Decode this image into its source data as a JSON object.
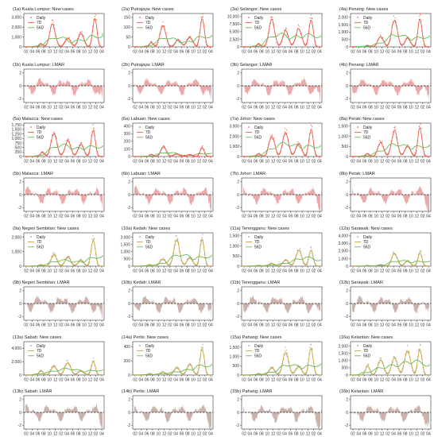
{
  "figure": {
    "x_ticks": [
      "02",
      "04",
      "06",
      "08",
      "10",
      "12",
      "02",
      "04",
      "06",
      "08",
      "10",
      "12",
      "02",
      "04"
    ],
    "colors": {
      "daily": "#e8604c",
      "ma7": "#c9a43c",
      "ma56": "#66bb55",
      "lmar_fill_pink": "#e89a9a",
      "lmar_fill_brown": "#c2a49c",
      "zero_line": "#222222"
    }
  },
  "chart_data": [
    {
      "type": "line",
      "title": "(1a) Kuala Lumpur: New cases",
      "y_ticks": [
        0,
        1000,
        2000,
        3000
      ],
      "y_tick_labels": [
        "0",
        "1,000",
        "2,000",
        "3,000"
      ],
      "ylim": [
        0,
        3400
      ],
      "legend": [
        "Daily",
        "7D",
        "56D"
      ],
      "palette": "orange",
      "peaks": [
        [
          0.2,
          0.1
        ],
        [
          0.35,
          0.75
        ],
        [
          0.55,
          0.3
        ],
        [
          0.72,
          0.45
        ],
        [
          0.9,
          3200
        ]
      ]
    },
    {
      "type": "line",
      "title": "(2a) Putrajaya: New cases",
      "y_ticks": [
        0,
        50,
        100,
        150
      ],
      "y_tick_labels": [
        "0",
        "50",
        "100",
        "150"
      ],
      "ylim": [
        0,
        170
      ],
      "legend": [
        "Daily",
        "7D",
        "56D"
      ],
      "palette": "orange",
      "peaks": [
        [
          0.22,
          0.15
        ],
        [
          0.37,
          0.75
        ],
        [
          0.57,
          0.25
        ],
        [
          0.72,
          0.35
        ],
        [
          0.88,
          155
        ]
      ]
    },
    {
      "type": "line",
      "title": "(3a) Selangor: New cases",
      "y_ticks": [
        0,
        2500,
        5000,
        7500,
        10000
      ],
      "y_tick_labels": [
        "0",
        "2,500",
        "5,000",
        "7,500",
        "10,000"
      ],
      "ylim": [
        0,
        11000
      ],
      "legend": [
        "Daily",
        "7D",
        "56D"
      ],
      "palette": "orange",
      "peaks": [
        [
          0.2,
          0.1
        ],
        [
          0.37,
          0.92
        ],
        [
          0.55,
          0.55
        ],
        [
          0.72,
          0.65
        ],
        [
          0.88,
          10000
        ]
      ]
    },
    {
      "type": "line",
      "title": "(4a) Penang: New cases",
      "y_ticks": [
        0,
        500,
        1000,
        1500,
        2000
      ],
      "y_tick_labels": [
        "0",
        "500",
        "1,000",
        "1,500",
        "2,000"
      ],
      "ylim": [
        0,
        2250
      ],
      "legend": [
        "Daily",
        "7D",
        "56D"
      ],
      "palette": "orange",
      "peaks": [
        [
          0.2,
          0.05
        ],
        [
          0.37,
          0.35
        ],
        [
          0.55,
          0.95
        ],
        [
          0.72,
          0.3
        ],
        [
          0.88,
          2000
        ]
      ]
    },
    {
      "type": "area",
      "title": "(1b) Kuala Lumpur: LMAR",
      "y_ticks": [
        -2,
        0,
        2
      ],
      "ylim": [
        -2.6,
        2.6
      ],
      "palette": "pink"
    },
    {
      "type": "area",
      "title": "(2b) Putrajaya: LMAR",
      "y_ticks": [
        -2,
        0,
        2
      ],
      "ylim": [
        -2.6,
        2.6
      ],
      "palette": "pink"
    },
    {
      "type": "area",
      "title": "(3b) Selangor: LMAR",
      "y_ticks": [
        -2,
        0,
        2
      ],
      "ylim": [
        -2.6,
        2.6
      ],
      "palette": "pink"
    },
    {
      "type": "area",
      "title": "(4b) Penang: LMAR",
      "y_ticks": [
        -2,
        0,
        2
      ],
      "ylim": [
        -2.6,
        2.6
      ],
      "palette": "pink"
    },
    {
      "type": "line",
      "title": "(5a) Malacca: New cases",
      "y_ticks": [
        0,
        250,
        500,
        750,
        1000,
        1250,
        1500,
        1750
      ],
      "y_tick_labels": [
        "0",
        "250",
        "500",
        "750",
        "1,000",
        "1,250",
        "1,500",
        "1,750"
      ],
      "ylim": [
        0,
        1850
      ],
      "legend": [
        "Daily",
        "7D",
        "56D"
      ],
      "palette": "orange",
      "peaks": [
        [
          0.22,
          0.15
        ],
        [
          0.37,
          0.8
        ],
        [
          0.55,
          0.55
        ],
        [
          0.72,
          0.4
        ],
        [
          0.88,
          1700
        ]
      ]
    },
    {
      "type": "line",
      "title": "(6a) Labuan: New cases",
      "y_ticks": [
        0,
        100,
        200,
        300,
        400
      ],
      "y_tick_labels": [
        "0",
        "100",
        "200",
        "300",
        "400"
      ],
      "ylim": [
        0,
        440
      ],
      "legend": [
        "Daily",
        "7D",
        "56D"
      ],
      "palette": "orange",
      "peaks": [
        [
          0.22,
          0.2
        ],
        [
          0.38,
          0.95
        ],
        [
          0.55,
          0.25
        ],
        [
          0.72,
          0.2
        ],
        [
          0.88,
          130
        ]
      ]
    },
    {
      "type": "line",
      "title": "(7a) Johor: New cases",
      "y_ticks": [
        0,
        1000,
        2000,
        3000
      ],
      "y_tick_labels": [
        "0",
        "1,000",
        "2,000",
        "3,000"
      ],
      "ylim": [
        0,
        3300
      ],
      "legend": [
        "Daily",
        "7D",
        "56D"
      ],
      "palette": "orange",
      "peaks": [
        [
          0.2,
          0.1
        ],
        [
          0.37,
          0.7
        ],
        [
          0.55,
          0.85
        ],
        [
          0.72,
          0.45
        ],
        [
          0.88,
          3000
        ]
      ]
    },
    {
      "type": "line",
      "title": "(8a) Perak: New cases",
      "y_ticks": [
        0,
        500,
        1000,
        1500
      ],
      "y_tick_labels": [
        "0",
        "500",
        "1,000",
        "1,500"
      ],
      "ylim": [
        0,
        1650
      ],
      "legend": [
        "Daily",
        "7D",
        "56D"
      ],
      "palette": "orange",
      "peaks": [
        [
          0.2,
          0.1
        ],
        [
          0.37,
          0.5
        ],
        [
          0.55,
          0.9
        ],
        [
          0.72,
          0.35
        ],
        [
          0.88,
          1500
        ]
      ]
    },
    {
      "type": "area",
      "title": "(5b) Malacca: LMAR",
      "y_ticks": [
        -2,
        0,
        2
      ],
      "ylim": [
        -2.6,
        2.6
      ],
      "palette": "pink"
    },
    {
      "type": "area",
      "title": "(6b) Labuan: LMAR",
      "y_ticks": [
        -2,
        0,
        2
      ],
      "ylim": [
        -2.6,
        2.6
      ],
      "palette": "pink"
    },
    {
      "type": "area",
      "title": "(7b) Johor: LMAR",
      "y_ticks": [
        -2,
        0,
        2
      ],
      "ylim": [
        -2.6,
        2.6
      ],
      "palette": "pink"
    },
    {
      "type": "area",
      "title": "(8b) Perak: LMAR",
      "y_ticks": [
        -2,
        0,
        2
      ],
      "ylim": [
        -2.6,
        2.6
      ],
      "palette": "pink"
    },
    {
      "type": "line",
      "title": "(9a) Negeri Sembilan: New cases",
      "y_ticks": [
        0,
        1000,
        2000
      ],
      "y_tick_labels": [
        "0",
        "1,000",
        "2,000"
      ],
      "ylim": [
        0,
        2300
      ],
      "legend": [
        "Daily",
        "7D",
        "56D"
      ],
      "palette": "brown",
      "peaks": [
        [
          0.2,
          0.05
        ],
        [
          0.37,
          0.4
        ],
        [
          0.55,
          0.3
        ],
        [
          0.72,
          0.2
        ],
        [
          0.88,
          2100
        ]
      ]
    },
    {
      "type": "line",
      "title": "(10a) Kedah: New cases",
      "y_ticks": [
        0,
        500,
        1000,
        1500,
        2000
      ],
      "y_tick_labels": [
        "0",
        "500",
        "1,000",
        "1,500",
        "2,000"
      ],
      "ylim": [
        0,
        2300
      ],
      "legend": [
        "Daily",
        "7D",
        "56D"
      ],
      "palette": "brown",
      "peaks": [
        [
          0.2,
          0.05
        ],
        [
          0.37,
          0.25
        ],
        [
          0.55,
          0.9
        ],
        [
          0.72,
          0.3
        ],
        [
          0.88,
          2100
        ]
      ]
    },
    {
      "type": "line",
      "title": "(11a) Terengganu: New cases",
      "y_ticks": [
        0,
        500,
        1000,
        1500
      ],
      "y_tick_labels": [
        "0",
        "500",
        "1,000",
        "1,500"
      ],
      "ylim": [
        0,
        1650
      ],
      "legend": [
        "Daily",
        "7D",
        "56D"
      ],
      "palette": "brown",
      "peaks": [
        [
          0.2,
          0.05
        ],
        [
          0.37,
          0.15
        ],
        [
          0.55,
          0.35
        ],
        [
          0.72,
          0.95
        ],
        [
          0.88,
          900
        ]
      ]
    },
    {
      "type": "line",
      "title": "(12a) Sarawak: New cases",
      "y_ticks": [
        0,
        1000,
        2000,
        3000,
        4000
      ],
      "y_tick_labels": [
        "0",
        "1,000",
        "2,000",
        "3,000",
        "4,000"
      ],
      "ylim": [
        0,
        4400
      ],
      "legend": [
        "Daily",
        "7D",
        "56D"
      ],
      "palette": "brown",
      "peaks": [
        [
          0.2,
          0.05
        ],
        [
          0.37,
          0.1
        ],
        [
          0.55,
          0.95
        ],
        [
          0.72,
          0.35
        ],
        [
          0.88,
          1900
        ]
      ]
    },
    {
      "type": "area",
      "title": "(9b) Negeri Sembilan: LMAR",
      "y_ticks": [
        -2,
        0,
        2
      ],
      "ylim": [
        -2.6,
        2.6
      ],
      "palette": "brown"
    },
    {
      "type": "area",
      "title": "(10b) Kedah: LMAR",
      "y_ticks": [
        -2,
        0,
        2
      ],
      "ylim": [
        -2.6,
        2.6
      ],
      "palette": "brown"
    },
    {
      "type": "area",
      "title": "(11b) Terengganu: LMAR",
      "y_ticks": [
        -2,
        0,
        2
      ],
      "ylim": [
        -2.6,
        2.6
      ],
      "palette": "brown"
    },
    {
      "type": "area",
      "title": "(12b) Sarawak: LMAR",
      "y_ticks": [
        -2,
        0,
        2
      ],
      "ylim": [
        -2.6,
        2.6
      ],
      "palette": "brown"
    },
    {
      "type": "line",
      "title": "(13a) Sabah: New cases",
      "y_ticks": [
        0,
        2000,
        4000
      ],
      "y_tick_labels": [
        "0",
        "2,000",
        "4,000"
      ],
      "ylim": [
        0,
        5000
      ],
      "legend": [
        "Daily",
        "7D",
        "56D"
      ],
      "palette": "brown",
      "peaks": [
        [
          0.2,
          0.3
        ],
        [
          0.37,
          0.65
        ],
        [
          0.55,
          0.9
        ],
        [
          0.72,
          0.3
        ],
        [
          0.88,
          2200
        ]
      ]
    },
    {
      "type": "line",
      "title": "(14a) Perlis: New cases",
      "y_ticks": [
        0,
        200,
        400
      ],
      "y_tick_labels": [
        "0",
        "200",
        "400"
      ],
      "ylim": [
        0,
        470
      ],
      "legend": [
        "Daily",
        "7D",
        "56D"
      ],
      "palette": "brown",
      "peaks": [
        [
          0.2,
          0.05
        ],
        [
          0.37,
          0.1
        ],
        [
          0.55,
          0.25
        ],
        [
          0.72,
          0.35
        ],
        [
          0.88,
          420
        ]
      ]
    },
    {
      "type": "line",
      "title": "(15a) Pahang: New cases",
      "y_ticks": [
        0,
        500,
        1000,
        1500
      ],
      "y_tick_labels": [
        "0",
        "500",
        "1,000",
        "1,500"
      ],
      "ylim": [
        0,
        1800
      ],
      "legend": [
        "Daily",
        "7D",
        "56D"
      ],
      "palette": "brown",
      "peaks": [
        [
          0.2,
          0.05
        ],
        [
          0.37,
          0.25
        ],
        [
          0.55,
          0.8
        ],
        [
          0.72,
          0.3
        ],
        [
          0.88,
          1650
        ]
      ]
    },
    {
      "type": "line",
      "title": "(16a) Kelantan: New cases",
      "y_ticks": [
        0,
        500,
        1000,
        1500,
        2000
      ],
      "y_tick_labels": [
        "0",
        "500",
        "1,000",
        "1,500",
        "2,000"
      ],
      "ylim": [
        0,
        2300
      ],
      "legend": [
        "Daily",
        "7D",
        "56D"
      ],
      "palette": "brown",
      "peaks": [
        [
          0.2,
          0.35
        ],
        [
          0.37,
          0.55
        ],
        [
          0.55,
          0.6
        ],
        [
          0.72,
          0.9
        ],
        [
          0.88,
          2000
        ]
      ]
    },
    {
      "type": "area",
      "title": "(13b) Sabah: LMAR",
      "y_ticks": [
        -2,
        0,
        2
      ],
      "ylim": [
        -2.6,
        2.6
      ],
      "palette": "brown"
    },
    {
      "type": "area",
      "title": "(14b) Perlis: LMAR",
      "y_ticks": [
        -2,
        0,
        2
      ],
      "ylim": [
        -2.6,
        2.6
      ],
      "palette": "brown"
    },
    {
      "type": "area",
      "title": "(15b) Pahang: LMAR",
      "y_ticks": [
        -2,
        0,
        2
      ],
      "ylim": [
        -2.6,
        2.6
      ],
      "palette": "brown"
    },
    {
      "type": "area",
      "title": "(16b) Kelantan: LMAR",
      "y_ticks": [
        -2,
        0,
        2
      ],
      "ylim": [
        -2.6,
        2.6
      ],
      "palette": "brown"
    }
  ]
}
